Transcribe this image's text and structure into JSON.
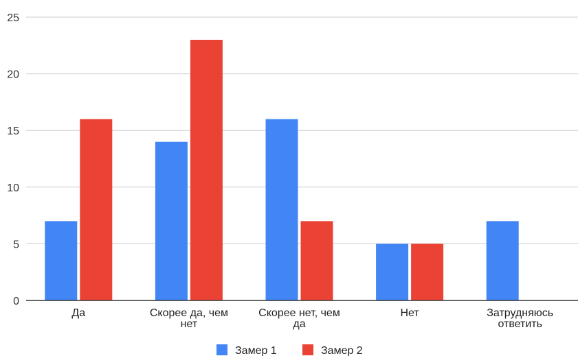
{
  "chart_data": {
    "type": "bar",
    "categories": [
      [
        "Да"
      ],
      [
        "Скорее да, чем",
        "нет"
      ],
      [
        "Скорее нет, чем",
        "да"
      ],
      [
        "Нет"
      ],
      [
        "Затрудняюсь",
        "ответить"
      ]
    ],
    "series": [
      {
        "name": "Замер 1",
        "color": "#4285f4",
        "values": [
          7,
          14,
          16,
          5,
          7
        ]
      },
      {
        "name": "Замер 2",
        "color": "#ea4335",
        "values": [
          16,
          23,
          7,
          5,
          0
        ]
      }
    ],
    "yticks": [
      0,
      5,
      10,
      15,
      20,
      25
    ],
    "ylim": [
      0,
      25
    ],
    "grid": true,
    "legend_position": "bottom"
  }
}
